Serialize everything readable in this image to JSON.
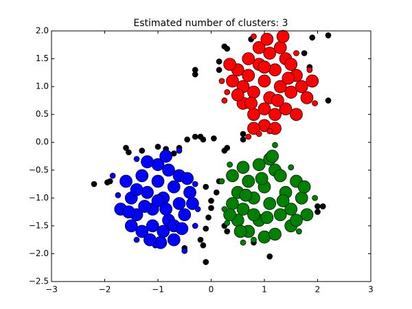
{
  "chart_data": {
    "type": "scatter",
    "title": "Estimated number of clusters: 3",
    "xlim": [
      -3,
      3
    ],
    "xticks": [
      {
        "value": -3,
        "label": "−3"
      },
      {
        "value": -2,
        "label": "−2"
      },
      {
        "value": -1,
        "label": "−1"
      },
      0,
      1,
      2,
      3
    ],
    "ylim": [
      -2.5,
      2.0
    ],
    "yticks": [
      {
        "value": -2.5,
        "label": "−2.5"
      },
      {
        "value": -2.0,
        "label": "−2.0"
      },
      {
        "value": -1.5,
        "label": "−1.5"
      },
      {
        "value": -1.0,
        "label": "−1.0"
      },
      {
        "value": -0.5,
        "label": "−0.5"
      },
      {
        "value": 0,
        "label": "0.0"
      },
      {
        "value": 0.5,
        "label": "0.5"
      },
      {
        "value": 1.0,
        "label": "1.0"
      },
      {
        "value": 1.5,
        "label": "1.5"
      },
      {
        "value": 2.0,
        "label": "2.0"
      }
    ],
    "series": [
      {
        "color": "#000000",
        "size": 4,
        "x": [
          -2.2,
          -1.95,
          -1.9,
          -1.6,
          -1.55,
          -1.3,
          -1.0,
          -0.85,
          -0.7,
          -0.6,
          -0.45,
          -0.3,
          -0.3,
          -0.2,
          -0.15,
          0.05,
          0.15,
          0.15,
          0.25,
          0.3,
          0.25,
          0.3,
          0.15,
          0.1,
          0,
          -0.05,
          -0.1,
          -0.2,
          -0.15,
          -0.5,
          -0.1,
          0.0,
          -0.1,
          0.25,
          0.3,
          0.6,
          0.6,
          0.75,
          1.1,
          1.9,
          2.2,
          1.85,
          1.75,
          2.2,
          2.0,
          2.0,
          2.1,
          0.8,
          -0.3
        ],
        "y": [
          -0.75,
          -0.72,
          -0.7,
          -0.1,
          -0.18,
          -0.15,
          -0.08,
          -0.12,
          -0.2,
          -0.1,
          0.05,
          1.3,
          1.22,
          0.1,
          0.05,
          0.07,
          1.45,
          1.3,
          1.72,
          1.68,
          -0.15,
          -0.1,
          -0.7,
          -0.9,
          -1.18,
          -1.35,
          -1.55,
          -1.75,
          -1.85,
          -1.9,
          -0.8,
          -1.05,
          -2.15,
          -1.5,
          -1.6,
          0.15,
          0.05,
          1.85,
          -2.05,
          1.88,
          1.92,
          1.35,
          1.6,
          0.75,
          -1.15,
          -1.25,
          -1.15,
          -1.8,
          0.1
        ]
      },
      {
        "color": "#ff0000",
        "size": 9,
        "x": [
          0.5,
          0.6,
          0.7,
          0.8,
          0.9,
          1.0,
          1.1,
          1.2,
          1.3,
          1.4,
          1.5,
          1.6,
          0.6,
          0.8,
          1.0,
          1.2,
          1.4,
          0.4,
          1.7,
          1.8,
          0.9,
          1.1,
          1.3,
          0.7,
          1.5,
          0.5,
          1.0,
          1.2,
          0.8,
          1.6,
          1.0,
          1.25,
          0.75,
          1.45,
          0.35,
          1.9,
          1.05,
          1.35
        ],
        "y": [
          1.3,
          1.0,
          1.2,
          0.9,
          1.4,
          1.1,
          0.8,
          1.3,
          1.0,
          1.5,
          0.9,
          1.2,
          0.7,
          0.5,
          0.6,
          0.5,
          0.6,
          1.1,
          1.0,
          0.8,
          1.7,
          1.6,
          1.7,
          1.5,
          1.4,
          0.85,
          0.3,
          0.25,
          0.25,
          0.5,
          1.35,
          0.75,
          0.7,
          1.15,
          1.4,
          1.1,
          1.85,
          1.9
        ]
      },
      {
        "color": "#ff0000",
        "size": 4,
        "x": [
          0.25,
          0.3,
          0.7,
          0.9,
          1.1,
          0.8,
          1.6,
          1.85,
          1.95,
          0.2
        ],
        "y": [
          0.75,
          0.9,
          0.1,
          0.15,
          0.2,
          1.9,
          1.6,
          1.3,
          0.7,
          1.1
        ]
      },
      {
        "color": "#008000",
        "size": 9,
        "x": [
          0.4,
          0.5,
          0.6,
          0.7,
          0.8,
          0.9,
          1.0,
          1.1,
          1.2,
          1.3,
          1.4,
          1.5,
          1.6,
          1.7,
          0.5,
          0.7,
          0.9,
          1.1,
          1.3,
          1.5,
          1.8,
          0.4,
          0.6,
          1.0,
          1.2,
          0.8,
          1.05,
          1.35,
          0.65,
          0.95,
          1.6,
          1.75,
          0.35,
          1.15,
          0.55
        ],
        "y": [
          -0.6,
          -0.9,
          -1.2,
          -0.7,
          -1.0,
          -1.4,
          -0.8,
          -1.1,
          -0.5,
          -1.3,
          -0.9,
          -1.2,
          -0.7,
          -1.0,
          -1.4,
          -1.6,
          -0.4,
          -0.3,
          -0.6,
          -1.5,
          -1.3,
          -1.1,
          -0.45,
          -1.7,
          -1.65,
          -1.3,
          -1.35,
          -1.05,
          -0.95,
          -0.65,
          -1.4,
          -0.8,
          -1.3,
          -0.25,
          -1.6
        ]
      },
      {
        "color": "#008000",
        "size": 4,
        "x": [
          0.2,
          0.25,
          0.3,
          0.6,
          0.8,
          1.5,
          1.65,
          1.95,
          1.2,
          0.35
        ],
        "y": [
          -0.7,
          -1.2,
          -1.45,
          -1.8,
          -1.75,
          -0.45,
          -1.6,
          -1.0,
          -0.05,
          -0.4
        ]
      },
      {
        "color": "#0000ff",
        "size": 9,
        "x": [
          -1.6,
          -1.5,
          -1.4,
          -1.3,
          -1.2,
          -1.1,
          -1.0,
          -0.9,
          -0.8,
          -0.7,
          -0.6,
          -0.5,
          -0.4,
          -1.5,
          -1.3,
          -1.1,
          -0.9,
          -0.7,
          -1.0,
          -0.8,
          -1.2,
          -0.6,
          -1.7,
          -1.4,
          -1.0,
          -0.85,
          -1.25,
          -0.55,
          -1.55,
          -0.45,
          -0.95,
          -1.15,
          -0.7,
          -0.35,
          -0.85
        ],
        "y": [
          -0.7,
          -1.0,
          -1.3,
          -0.6,
          -0.9,
          -1.2,
          -0.7,
          -1.0,
          -1.4,
          -0.8,
          -1.1,
          -1.3,
          -0.9,
          -1.5,
          -1.6,
          -1.5,
          -1.6,
          -1.5,
          -0.4,
          -0.5,
          -0.35,
          -0.6,
          -1.2,
          -0.85,
          -1.05,
          -1.2,
          -1.15,
          -1.55,
          -1.25,
          -0.65,
          -1.8,
          -1.75,
          -1.75,
          -1.1,
          -0.25
        ]
      },
      {
        "color": "#0000ff",
        "size": 4,
        "x": [
          -1.75,
          -1.4,
          -1.4,
          -1.05,
          -0.5,
          -0.3,
          -0.25,
          -0.6,
          -1.85,
          -0.3
        ],
        "y": [
          -0.95,
          -0.3,
          -1.75,
          -1.85,
          -1.95,
          -1.5,
          -1.2,
          -0.15,
          -0.6,
          -0.75
        ]
      }
    ]
  }
}
